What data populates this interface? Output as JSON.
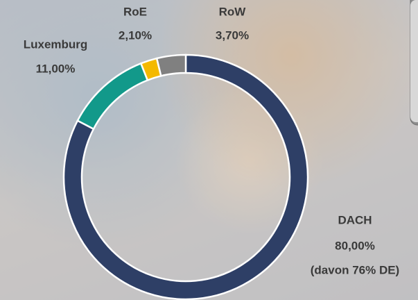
{
  "chart_data": {
    "type": "pie",
    "donut": true,
    "categories": [
      "DACH",
      "Luxemburg",
      "RoE",
      "RoW"
    ],
    "values": [
      80,
      11,
      2.1,
      3.7
    ],
    "value_labels": [
      "80,00%",
      "11,00%",
      "2,10%",
      "3,70%"
    ],
    "colors": [
      "#2e3f66",
      "#12998a",
      "#f4b900",
      "#808080"
    ],
    "annotation": "(davon 76% DE)"
  }
}
